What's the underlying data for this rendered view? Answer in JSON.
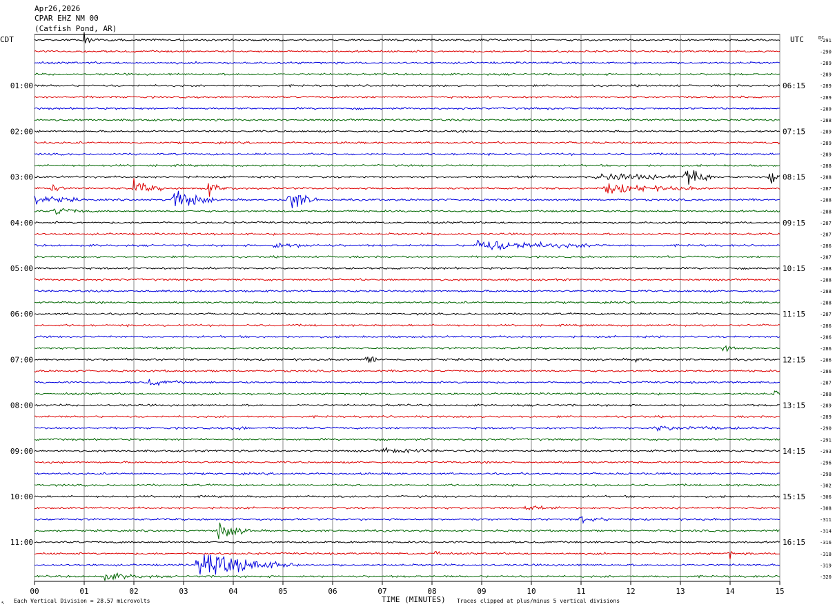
{
  "header": {
    "date": "Apr26,2026",
    "station": "CPAR EHZ NM 00",
    "location": "(Catfish Pond, AR)"
  },
  "left_zone": "CDT",
  "right_zone": "UTC",
  "dc_label": "DC",
  "left_hours": [
    "01:00",
    "02:00",
    "03:00",
    "04:00",
    "05:00",
    "06:00",
    "07:00",
    "08:00",
    "09:00",
    "10:00",
    "11:00"
  ],
  "right_hours": [
    "06:15",
    "07:15",
    "08:15",
    "09:15",
    "10:15",
    "11:15",
    "12:15",
    "13:15",
    "14:15",
    "15:15",
    "16:15"
  ],
  "footer": {
    "corner": "↖",
    "scale": "Each Vertical Division =   28.57 microvolts",
    "xlabel": "TIME (MINUTES)",
    "clip": "Traces clipped at plus/minus 5 vertical divisions"
  },
  "colors": {
    "trace_cycle": [
      "#000000",
      "#dd0000",
      "#0000dd",
      "#006600"
    ],
    "grid": "#888888"
  },
  "chart_data": {
    "type": "line",
    "xlabel": "TIME (MINUTES)",
    "xlim": [
      0,
      15
    ],
    "x_ticks": [
      "00",
      "01",
      "02",
      "03",
      "04",
      "05",
      "06",
      "07",
      "08",
      "09",
      "10",
      "11",
      "12",
      "13",
      "14",
      "15"
    ],
    "trace_count": 48,
    "dc_offsets": [
      "-291",
      "-290",
      "-289",
      "-289",
      "-289",
      "-289",
      "-289",
      "-288",
      "-289",
      "-289",
      "-289",
      "-288",
      "-288",
      "-287",
      "-288",
      "-288",
      "-287",
      "-287",
      "-286",
      "-287",
      "-288",
      "-288",
      "-288",
      "-288",
      "-287",
      "-286",
      "-286",
      "-286",
      "-286",
      "-286",
      "-287",
      "-288",
      "-289",
      "-289",
      "-290",
      "-291",
      "-293",
      "-296",
      "-298",
      "-302",
      "-306",
      "-308",
      "-311",
      "-314",
      "-316",
      "-318",
      "-319",
      "-320"
    ],
    "events": [
      {
        "trace": 0,
        "minute": 1.0,
        "amp": 0.9,
        "dur": 0.3
      },
      {
        "trace": 12,
        "minute": 11.3,
        "amp": 0.7,
        "dur": 2.5
      },
      {
        "trace": 12,
        "minute": 13.1,
        "amp": 2.2,
        "dur": 0.6
      },
      {
        "trace": 12,
        "minute": 14.8,
        "amp": 2.0,
        "dur": 0.3
      },
      {
        "trace": 13,
        "minute": 0.3,
        "amp": 1.0,
        "dur": 0.3
      },
      {
        "trace": 13,
        "minute": 2.0,
        "amp": 1.6,
        "dur": 0.6
      },
      {
        "trace": 13,
        "minute": 3.5,
        "amp": 1.3,
        "dur": 0.5
      },
      {
        "trace": 13,
        "minute": 11.5,
        "amp": 1.0,
        "dur": 1.9
      },
      {
        "trace": 14,
        "minute": 0.0,
        "amp": 1.0,
        "dur": 1.0
      },
      {
        "trace": 14,
        "minute": 2.8,
        "amp": 2.6,
        "dur": 0.8
      },
      {
        "trace": 14,
        "minute": 5.1,
        "amp": 2.6,
        "dur": 0.6
      },
      {
        "trace": 15,
        "minute": 0.4,
        "amp": 0.9,
        "dur": 0.7
      },
      {
        "trace": 18,
        "minute": 4.8,
        "amp": 0.4,
        "dur": 1.3
      },
      {
        "trace": 18,
        "minute": 8.9,
        "amp": 1.1,
        "dur": 2.6
      },
      {
        "trace": 27,
        "minute": 13.9,
        "amp": 0.8,
        "dur": 0.4
      },
      {
        "trace": 28,
        "minute": 6.7,
        "amp": 1.1,
        "dur": 0.3
      },
      {
        "trace": 28,
        "minute": 12.1,
        "amp": 0.5,
        "dur": 0.3
      },
      {
        "trace": 30,
        "minute": 2.3,
        "amp": 0.6,
        "dur": 0.8
      },
      {
        "trace": 31,
        "minute": 14.9,
        "amp": 0.9,
        "dur": 0.15
      },
      {
        "trace": 34,
        "minute": 4.0,
        "amp": 0.6,
        "dur": 0.3
      },
      {
        "trace": 34,
        "minute": 12.5,
        "amp": 0.4,
        "dur": 2.0
      },
      {
        "trace": 36,
        "minute": 7.0,
        "amp": 0.4,
        "dur": 1.5
      },
      {
        "trace": 41,
        "minute": 9.9,
        "amp": 0.6,
        "dur": 0.4
      },
      {
        "trace": 42,
        "minute": 11.0,
        "amp": 0.8,
        "dur": 0.6
      },
      {
        "trace": 43,
        "minute": 3.7,
        "amp": 1.7,
        "dur": 0.7
      },
      {
        "trace": 45,
        "minute": 8.1,
        "amp": 2.6,
        "dur": 0.08
      },
      {
        "trace": 45,
        "minute": 14.0,
        "amp": 0.8,
        "dur": 0.1
      },
      {
        "trace": 46,
        "minute": 3.3,
        "amp": 3.0,
        "dur": 1.9
      },
      {
        "trace": 47,
        "minute": 1.4,
        "amp": 0.6,
        "dur": 1.2
      }
    ]
  }
}
